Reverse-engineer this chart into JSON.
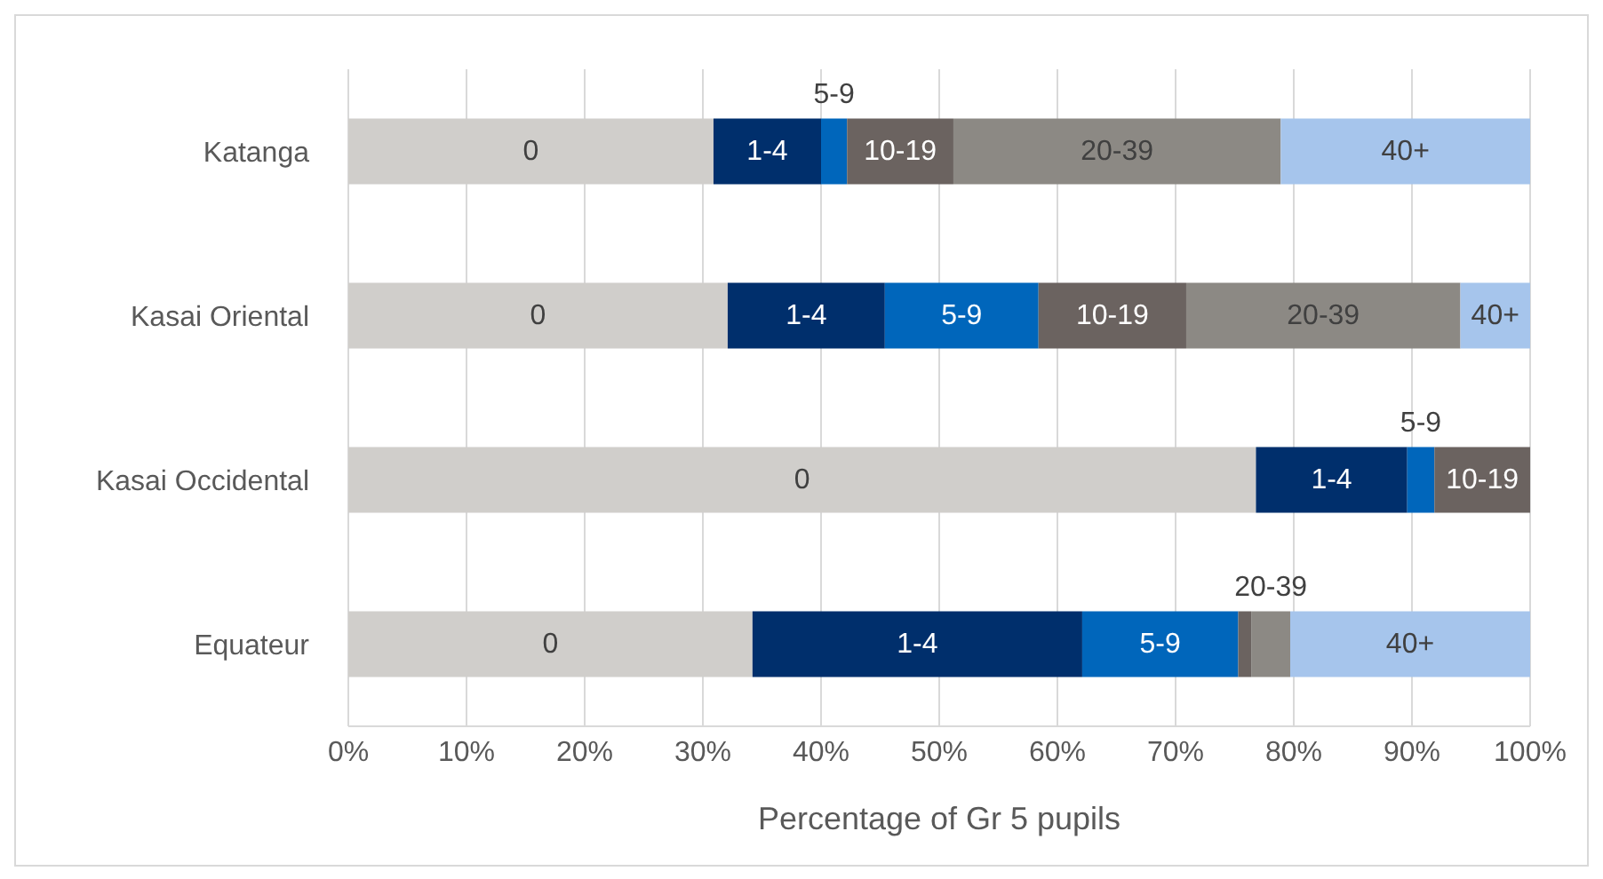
{
  "chart_data": {
    "type": "bar",
    "orientation": "horizontal",
    "stacked": true,
    "xlabel": "Percentage of Gr 5 pupils",
    "categories": [
      "Katanga",
      "Kasai Oriental",
      "Kasai Occidental",
      "Equateur"
    ],
    "xlim": [
      0,
      100
    ],
    "xticks": [
      {
        "value": 0,
        "label": "0%"
      },
      {
        "value": 10,
        "label": "10%"
      },
      {
        "value": 20,
        "label": "20%"
      },
      {
        "value": 30,
        "label": "30%"
      },
      {
        "value": 40,
        "label": "40%"
      },
      {
        "value": 50,
        "label": "50%"
      },
      {
        "value": 60,
        "label": "60%"
      },
      {
        "value": 70,
        "label": "70%"
      },
      {
        "value": 80,
        "label": "80%"
      },
      {
        "value": 90,
        "label": "90%"
      },
      {
        "value": 100,
        "label": "100%"
      }
    ],
    "grid": "x",
    "series": [
      {
        "name": "0",
        "color": "#d0cecb",
        "values": [
          30.9,
          32.1,
          76.8,
          34.2
        ]
      },
      {
        "name": "1-4",
        "color": "#002f6c",
        "values": [
          9.1,
          13.3,
          12.8,
          27.9
        ]
      },
      {
        "name": "5-9",
        "color": "#0066bb",
        "values": [
          2.2,
          13.0,
          2.3,
          13.2
        ]
      },
      {
        "name": "10-19",
        "color": "#6b6360",
        "values": [
          9.0,
          12.5,
          8.1,
          1.1
        ]
      },
      {
        "name": "20-39",
        "color": "#8c8984",
        "values": [
          27.7,
          23.2,
          null,
          3.3
        ]
      },
      {
        "name": "40+",
        "color": "#a6c5ec",
        "values": [
          21.1,
          5.9,
          null,
          20.3
        ]
      }
    ]
  }
}
